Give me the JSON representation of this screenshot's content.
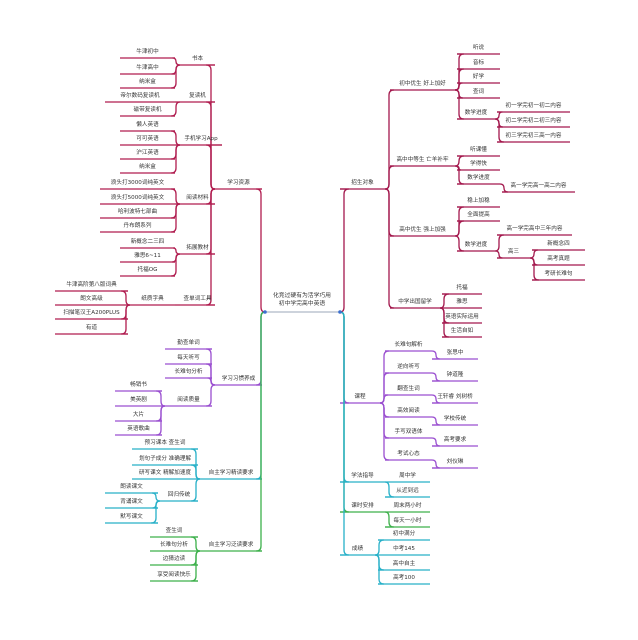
{
  "colors": {
    "resources": "#b01c4f",
    "habits": "#9a4fd0",
    "intensive": "#27b0c8",
    "extensive": "#3db04b",
    "recruit": "#a3184d",
    "course": "#9a4fd0",
    "method": "#27b0c8",
    "schedule": "#3db04b",
    "scores": "#27b0c8"
  },
  "center": {
    "line1": "化竞过硬有为活学巧用",
    "line2": "初中学完高中英语"
  },
  "resources": {
    "label": "学习资源",
    "books": {
      "label": "书本",
      "items": [
        "牛津初中",
        "牛津高中",
        "纳米盒"
      ]
    },
    "repeater": {
      "label": "复读机",
      "items": [
        "帝尔数码复读机",
        "磁带复读机"
      ]
    },
    "apps": {
      "label": "手机学习App",
      "items": [
        "懒人英语",
        "可可英语",
        "沪江英语",
        "纳米盒"
      ]
    },
    "reading": {
      "label": "阅读材料",
      "items": [
        "浪头打3000词纯英文",
        "浪头打5000词纯英文",
        "哈利波特七部曲",
        "丹布朗系列"
      ]
    },
    "textbooks": {
      "label": "拓展教材",
      "items": [
        "新概念二三四",
        "雅思6~11",
        "托福OG"
      ]
    },
    "dict": {
      "label": "查单词工具",
      "paper": {
        "label": "纸质字典",
        "items": [
          "牛津高阶第八版词典",
          "朗文高级",
          "扫描笔汉王A200PLUS",
          "有道"
        ]
      }
    }
  },
  "habits": {
    "label": "学习习惯养成",
    "items": [
      "勤查单词",
      "每天听写",
      "长难句分析"
    ],
    "quality": {
      "label": "阅读质量",
      "items": [
        "畅销书",
        "美英剧",
        "大片",
        "英语歌曲"
      ]
    }
  },
  "intensive": {
    "label": "自主学习精读要求",
    "items": [
      "预习课本 查生词",
      "划句子成分 准确理解",
      "研写课文 精解加速度"
    ],
    "tradition": {
      "label": "回归传统",
      "items": [
        "朗读课文",
        "背诵课文",
        "默写课文"
      ]
    }
  },
  "extensive": {
    "label": "自主学习泛读要求",
    "items": [
      "查生词",
      "长难句分析",
      "边猜边读",
      "享受阅读快乐"
    ]
  },
  "recruit": {
    "label": "招生对象",
    "junior_top": {
      "label": "初中优生 好上加好",
      "items": [
        "听说",
        "音标",
        "好学",
        "查词"
      ],
      "math": {
        "label": "数学进度",
        "items": [
          "初一学完初一初二内容",
          "初二学完初二初三内容",
          "初三学完初三高一内容"
        ]
      }
    },
    "senior_mid": {
      "label": "高中中等生 亡羊补牢",
      "items": [
        "听课懂",
        "学得快"
      ],
      "math": {
        "label": "数学进度",
        "items": [
          "高一学完高一高二内容"
        ]
      }
    },
    "senior_top": {
      "label": "高中优生 强上加强",
      "items": [
        "稳上加稳",
        "全面提高"
      ],
      "math": {
        "label": "数学进度",
        "items": [
          "高一学完高中三年内容"
        ],
        "g3": {
          "label": "高三",
          "items": [
            "新概念四",
            "高考真题",
            "考研长难句"
          ]
        }
      }
    },
    "abroad": {
      "label": "中学出国留学",
      "items": [
        "托福",
        "雅思",
        "英语实际运用",
        "生活自如"
      ]
    }
  },
  "course": {
    "label": "课程",
    "items": [
      {
        "topic": "长难句解析",
        "teacher": "张思中"
      },
      {
        "topic": "逆向听写",
        "teacher": "钟道隆"
      },
      {
        "topic": "翻查生词",
        "teacher": "王轩睿 刘树桥"
      },
      {
        "topic": "高效阅读",
        "teacher": "学校传统"
      },
      {
        "topic": "手写双语体",
        "teacher": "高考要求"
      },
      {
        "topic": "考试心态",
        "teacher": "刘仪琳"
      }
    ]
  },
  "method": {
    "label": "学法指导",
    "items": [
      "周中学",
      "从近到远"
    ]
  },
  "schedule": {
    "label": "课时安排",
    "items": [
      "周末两小时",
      "每天一小时"
    ]
  },
  "scores": {
    "label": "成绩",
    "items": [
      "初中满分",
      "中考145",
      "高中自主",
      "高考100"
    ]
  }
}
